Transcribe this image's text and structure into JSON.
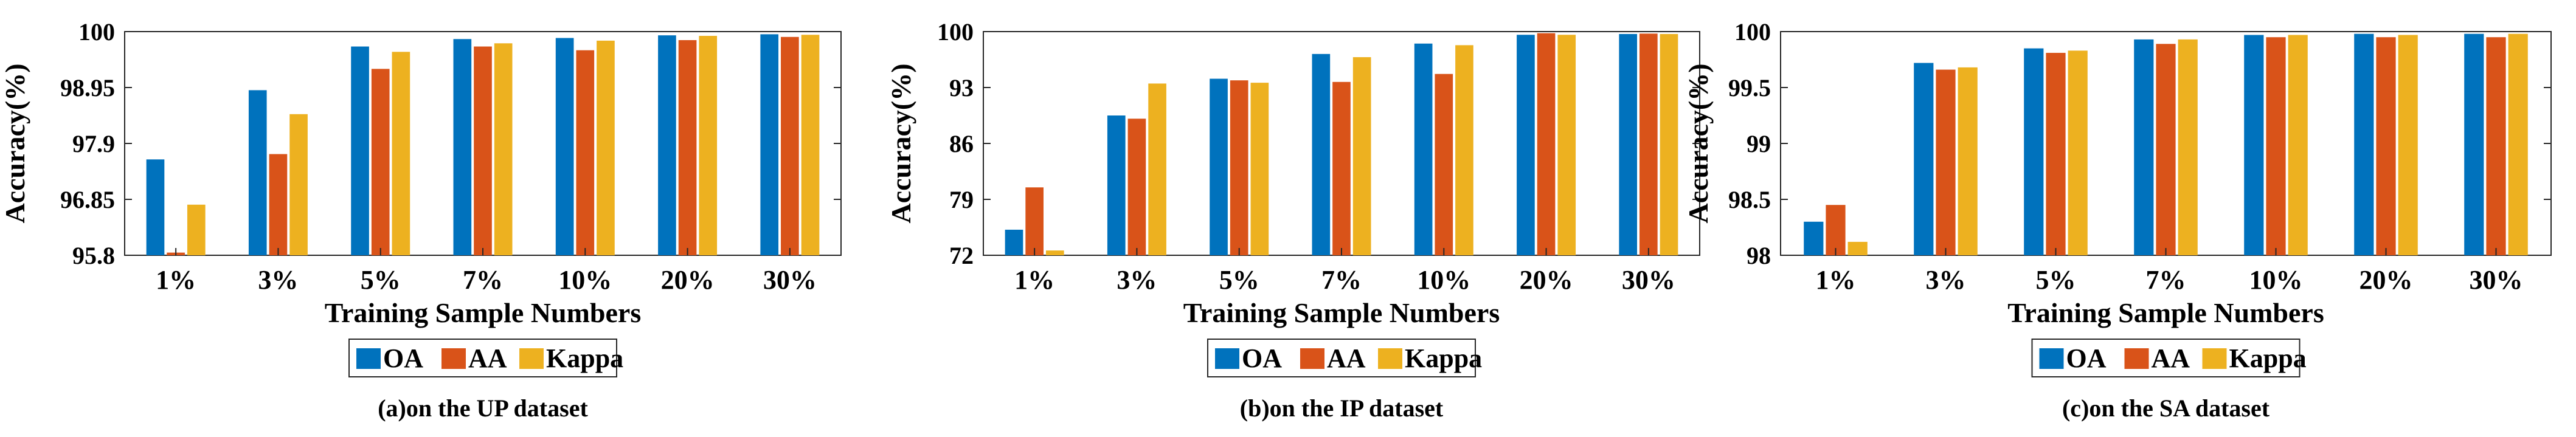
{
  "legend_labels": [
    "OA",
    "AA",
    "Kappa"
  ],
  "colors": {
    "OA": "#0072BD",
    "AA": "#D95319",
    "Kappa": "#EDB120"
  },
  "chart_data": [
    {
      "type": "bar",
      "caption": "(a)on the UP dataset",
      "xlabel": "Training Sample Numbers",
      "ylabel": "Accuracy(%)",
      "categories": [
        "1%",
        "3%",
        "5%",
        "7%",
        "10%",
        "20%",
        "30%"
      ],
      "ylim": [
        95.8,
        100
      ],
      "yticks": [
        "95.8",
        "96.85",
        "97.9",
        "98.95",
        "100"
      ],
      "ytick_values": [
        95.8,
        96.85,
        97.9,
        98.95,
        100
      ],
      "series": [
        {
          "name": "OA",
          "values": [
            97.6,
            98.9,
            99.72,
            99.86,
            99.88,
            99.93,
            99.95
          ]
        },
        {
          "name": "AA",
          "values": [
            95.85,
            97.7,
            99.3,
            99.72,
            99.65,
            99.84,
            99.9
          ]
        },
        {
          "name": "Kappa",
          "values": [
            96.75,
            98.45,
            99.62,
            99.78,
            99.83,
            99.92,
            99.94
          ]
        }
      ],
      "legend": "bottom-center",
      "grid": false
    },
    {
      "type": "bar",
      "caption": "(b)on the IP dataset",
      "xlabel": "Training Sample Numbers",
      "ylabel": "Accuracy(%)",
      "categories": [
        "1%",
        "3%",
        "5%",
        "7%",
        "10%",
        "20%",
        "30%"
      ],
      "ylim": [
        72,
        100
      ],
      "yticks": [
        "72",
        "79",
        "86",
        "93",
        "100"
      ],
      "ytick_values": [
        72,
        79,
        86,
        93,
        100
      ],
      "series": [
        {
          "name": "OA",
          "values": [
            75.2,
            89.5,
            94.1,
            97.2,
            98.5,
            99.6,
            99.7
          ]
        },
        {
          "name": "AA",
          "values": [
            80.5,
            89.1,
            93.9,
            93.7,
            94.7,
            99.8,
            99.75
          ]
        },
        {
          "name": "Kappa",
          "values": [
            72.6,
            93.5,
            93.6,
            96.8,
            98.3,
            99.6,
            99.7
          ]
        }
      ],
      "legend": "bottom-center",
      "grid": false
    },
    {
      "type": "bar",
      "caption": "(c)on the SA dataset",
      "xlabel": "Training Sample Numbers",
      "ylabel": "Accuracy(%)",
      "categories": [
        "1%",
        "3%",
        "5%",
        "7%",
        "10%",
        "20%",
        "30%"
      ],
      "ylim": [
        98,
        100
      ],
      "yticks": [
        "98",
        "98.5",
        "99",
        "99.5",
        "100"
      ],
      "ytick_values": [
        98,
        98.5,
        99,
        99.5,
        100
      ],
      "series": [
        {
          "name": "OA",
          "values": [
            98.3,
            99.72,
            99.85,
            99.93,
            99.97,
            99.98,
            99.98
          ]
        },
        {
          "name": "AA",
          "values": [
            98.45,
            99.66,
            99.81,
            99.89,
            99.95,
            99.95,
            99.95
          ]
        },
        {
          "name": "Kappa",
          "values": [
            98.12,
            99.68,
            99.83,
            99.93,
            99.97,
            99.97,
            99.98
          ]
        }
      ],
      "legend": "bottom-center",
      "grid": false
    }
  ]
}
